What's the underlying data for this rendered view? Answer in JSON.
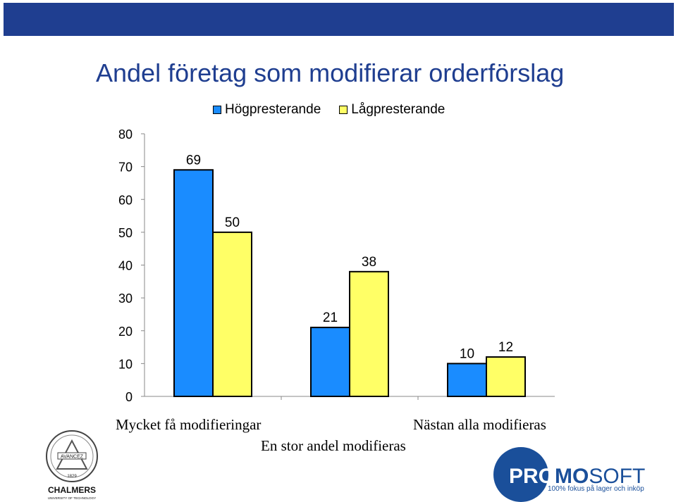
{
  "slide": {
    "title": "Andel företag som modifierar orderförslag",
    "banner_color": "#1f3e90"
  },
  "chart_data": {
    "type": "bar",
    "categories": [
      "Mycket få modifieringar",
      "En stor andel modifieras",
      "Nästan alla modifieras"
    ],
    "series": [
      {
        "name": "Högpresterande",
        "values": [
          69,
          21,
          10
        ],
        "color": "#1a8cff"
      },
      {
        "name": "Lågpresterande",
        "values": [
          50,
          38,
          12
        ],
        "color": "#ffff66"
      }
    ],
    "ylim": [
      0,
      80
    ],
    "yticks": [
      "0",
      "10",
      "20",
      "30",
      "40",
      "50",
      "60",
      "70",
      "80"
    ],
    "legend_position": "top",
    "grid": false
  },
  "logos": {
    "chalmers": {
      "name": "CHALMERS",
      "subtitle": "UNIVERSITY OF TECHNOLOGY",
      "motto": "AVANCEZ",
      "year": "1829"
    },
    "promosoft": {
      "pro": "PRO",
      "mo": "MO",
      "soft": "SOFT",
      "tagline": "100% fokus på lager och inköp"
    }
  }
}
